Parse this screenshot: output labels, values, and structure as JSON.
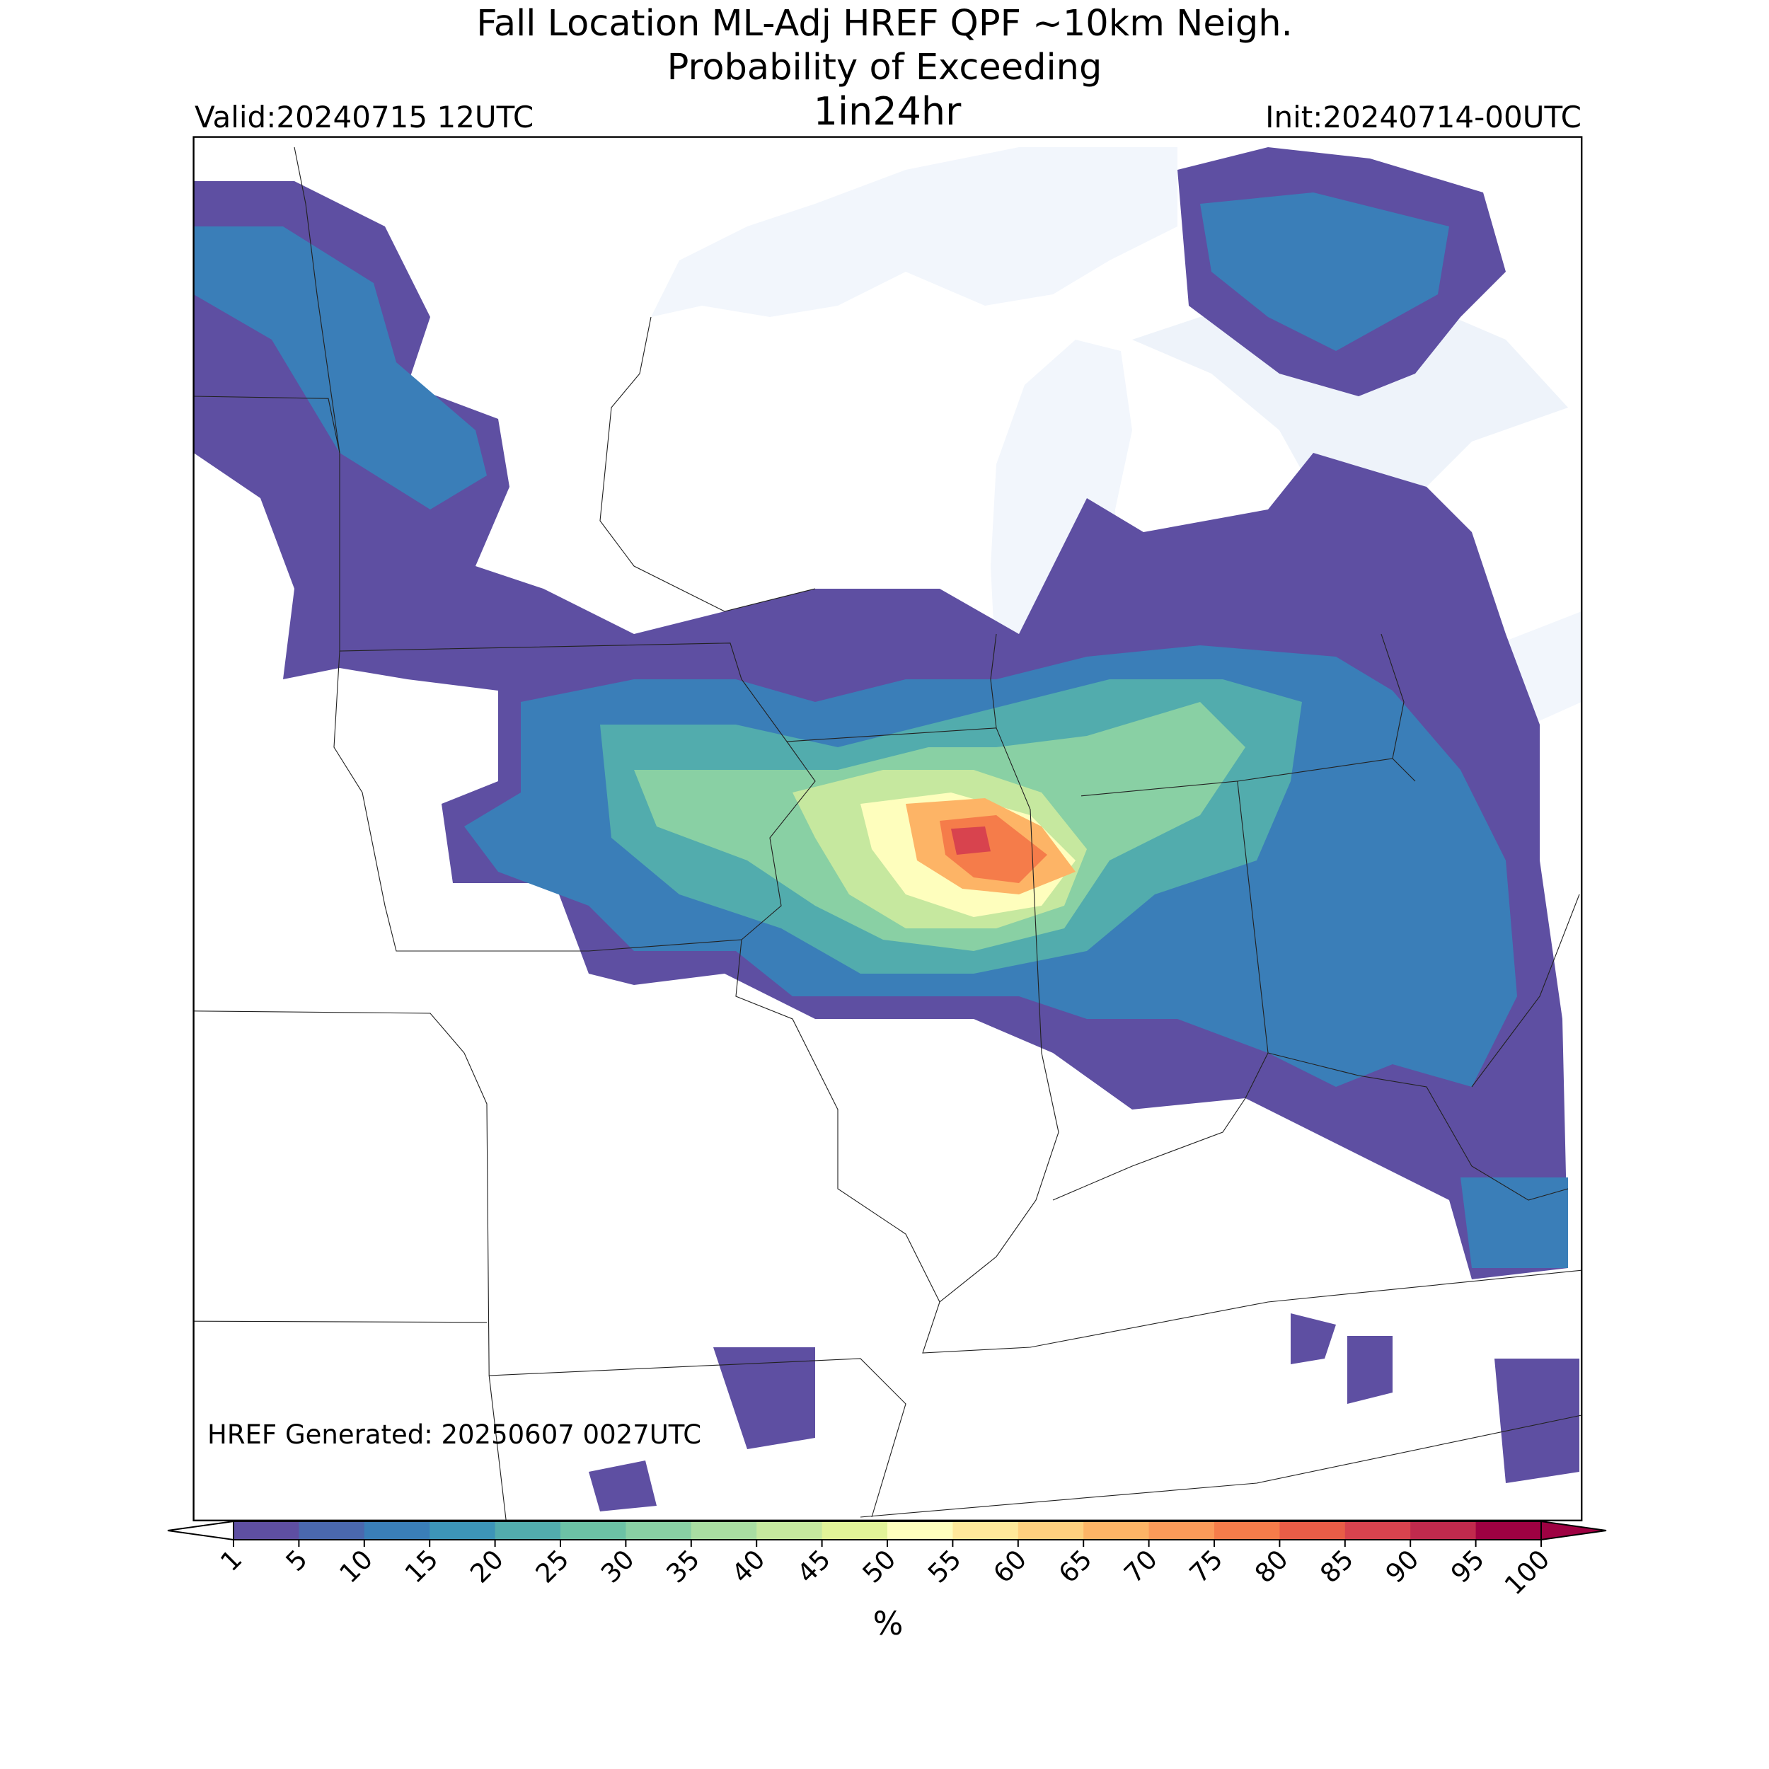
{
  "title": "Fall Location ML-Adj HREF QPF ~10km Neigh.",
  "subtitle": "Probability of Exceeding",
  "threshold": "1in24hr",
  "valid": "Valid:20240715 12UTC",
  "init": "Init:20240714-00UTC",
  "generated": "HREF Generated: 20250607 0027UTC",
  "colorbar": {
    "label": "%",
    "ticks": [
      1,
      5,
      10,
      15,
      20,
      25,
      30,
      35,
      40,
      45,
      50,
      55,
      60,
      65,
      70,
      75,
      80,
      85,
      90,
      95,
      100
    ],
    "colors": [
      "#5e4fa2",
      "#4a68ae",
      "#3a7eb8",
      "#3d95b8",
      "#52acad",
      "#6cc2a5",
      "#89d0a4",
      "#a9dda2",
      "#c6e89f",
      "#e2f398",
      "#fefebd",
      "#fee89a",
      "#fed07e",
      "#fdb466",
      "#fb9a59",
      "#f57c4a",
      "#e95d47",
      "#d8434e",
      "#c02a4d",
      "#9e0142"
    ],
    "under_color": "#ffffff",
    "over_color": "#9e0142"
  }
}
